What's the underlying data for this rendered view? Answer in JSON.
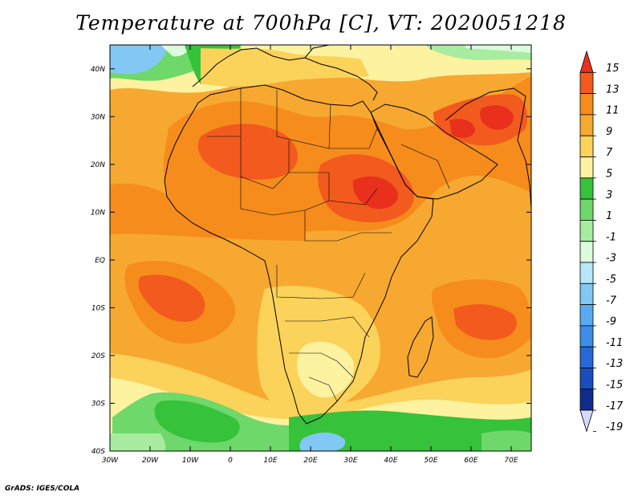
{
  "title": "Temperature at 700hPa [C], VT: 2020051218",
  "credit": "GrADS: IGES/COLA",
  "map": {
    "projection": "lat-lon",
    "lon_range": [
      -30,
      75
    ],
    "lat_range": [
      -40,
      45
    ],
    "lon_ticks": [
      "30W",
      "20W",
      "10W",
      "0",
      "10E",
      "20E",
      "30E",
      "40E",
      "50E",
      "60E",
      "70E"
    ],
    "lat_ticks": [
      "40N",
      "30N",
      "20N",
      "10N",
      "EQ",
      "10S",
      "20S",
      "30S",
      "40S"
    ]
  },
  "colorbar": {
    "labels": [
      "15",
      "13",
      "11",
      "9",
      "7",
      "5",
      "3",
      "1",
      "-1",
      "-3",
      "-5",
      "-7",
      "-9",
      "-11",
      "-13",
      "-15",
      "-17",
      "-19"
    ],
    "colors": [
      "#e8301c",
      "#f25a1e",
      "#f68c1c",
      "#f7a830",
      "#fbd25a",
      "#fdf2a0",
      "#36c23a",
      "#6ed86a",
      "#a8eca0",
      "#dcfadc",
      "#b8e6fa",
      "#82c8f4",
      "#5aaaf0",
      "#3c8ee6",
      "#2868d6",
      "#1a4cbe",
      "#0e2c8c",
      "#d6d8fa"
    ]
  }
}
